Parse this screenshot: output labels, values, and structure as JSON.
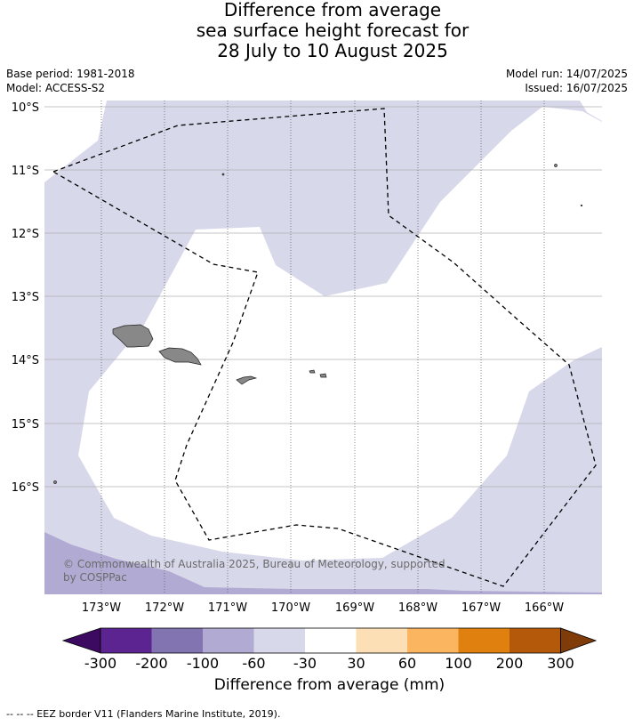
{
  "title": {
    "line1": "Difference from average",
    "line2": "sea surface height forecast for",
    "line3": "28 July to 10 August 2025"
  },
  "meta": {
    "base_period": "Base period: 1981-2018",
    "model": "Model: ACCESS-S2",
    "model_run": "Model run: 14/07/2025",
    "issued": "Issued: 16/07/2025"
  },
  "map": {
    "lat_labels": [
      "10°S",
      "11°S",
      "12°S",
      "13°S",
      "14°S",
      "15°S",
      "16°S"
    ],
    "lon_labels": [
      "173°W",
      "172°W",
      "171°W",
      "170°W",
      "169°W",
      "168°W",
      "167°W",
      "166°W"
    ],
    "lat_range": [
      -17.8,
      -9.9
    ],
    "lon_range": [
      -173.9,
      -165.1
    ],
    "copyright": "© Commonwealth of Australia 2025, Bureau of Meteorology, supported by COSPPac",
    "colors": {
      "shade_light": "#d8d8eb",
      "shade_medium": "#b1abd3",
      "land": "#888888",
      "gridline": "#b0b0b0"
    }
  },
  "colorbar": {
    "tick_labels": [
      "-300",
      "-200",
      "-100",
      "-60",
      "-30",
      "30",
      "60",
      "100",
      "200",
      "300"
    ],
    "colors": [
      "#3d0a61",
      "#5c2490",
      "#8273b1",
      "#b1abd3",
      "#d8d8eb",
      "#ffffff",
      "#fddfb5",
      "#fbb45f",
      "#e0800f",
      "#b4590a",
      "#7f3b08"
    ],
    "title": "Difference from average (mm)"
  },
  "footer": "--  --  -- EEZ border V11 (Flanders Marine Institute, 2019)."
}
